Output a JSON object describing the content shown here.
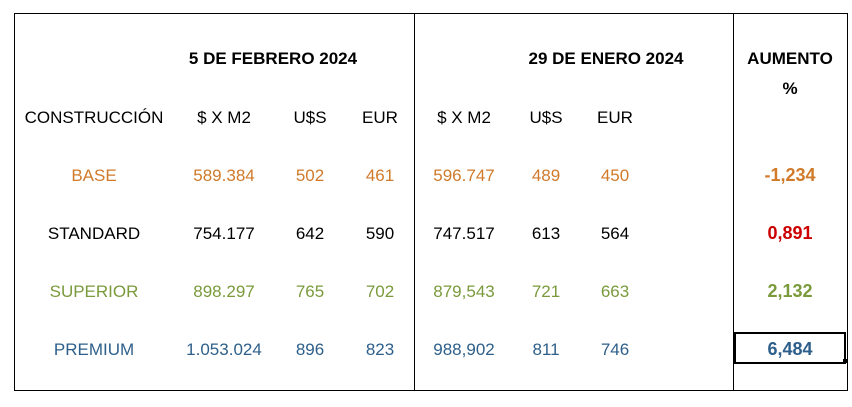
{
  "headers": {
    "period1": "5 DE FEBRERO 2024",
    "period2": "29 DE ENERO 2024",
    "increase_line1": "AUMENTO",
    "increase_line2": "%"
  },
  "columns": {
    "construction": "CONSTRUCCIÓN",
    "price_m2_1": "$ X M2",
    "usd_1": "U$S",
    "eur_1": "EUR",
    "price_m2_2": "$ X M2",
    "usd_2": "U$S",
    "eur_2": "EUR"
  },
  "rows": [
    {
      "name": "BASE",
      "price_m2_1": "589.384",
      "usd_1": "502",
      "eur_1": "461",
      "price_m2_2": "596.747",
      "usd_2": "489",
      "eur_2": "450",
      "increase": "-1,234"
    },
    {
      "name": "STANDARD",
      "price_m2_1": "754.177",
      "usd_1": "642",
      "eur_1": "590",
      "price_m2_2": "747.517",
      "usd_2": "613",
      "eur_2": "564",
      "increase": "0,891"
    },
    {
      "name": "SUPERIOR",
      "price_m2_1": "898.297",
      "usd_1": "765",
      "eur_1": "702",
      "price_m2_2": "879,543",
      "usd_2": "721",
      "eur_2": "663",
      "increase": "2,132"
    },
    {
      "name": "PREMIUM",
      "price_m2_1": "1.053.024",
      "usd_1": "896",
      "eur_1": "823",
      "price_m2_2": "988,902",
      "usd_2": "811",
      "eur_2": "746",
      "increase": "6,484"
    }
  ],
  "colors": {
    "base": "#d07a2a",
    "standard": "#000000",
    "standard_increase": "#cc0000",
    "superior": "#7a9a3c",
    "premium": "#2e5f8a"
  }
}
